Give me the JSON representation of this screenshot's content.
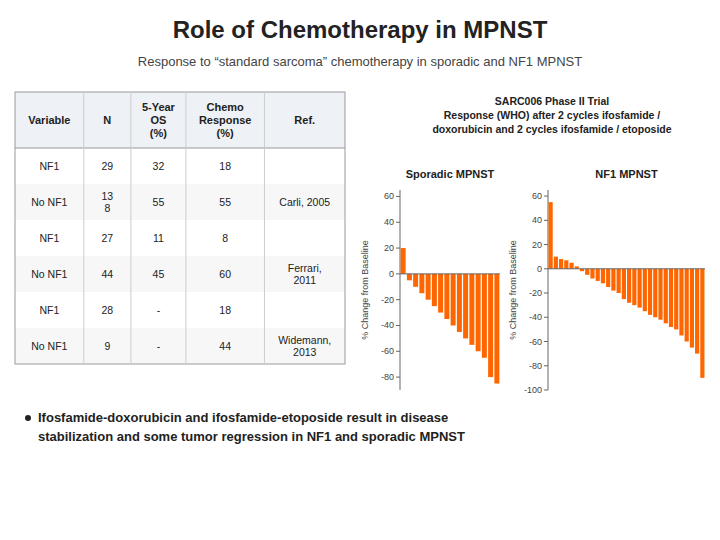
{
  "chart_data": [
    {
      "type": "table",
      "title": "Role of Chemotherapy in MPNST",
      "subtitle": "Response to “standard sarcoma” chemotherapy in sporadic and NF1 MPNST",
      "columns": [
        "Variable",
        "N",
        "5-Year\nOS\n(%)",
        "Chemo\nResponse\n(%)",
        "Ref."
      ],
      "rows": [
        [
          "NF1",
          "29",
          "32",
          "18",
          null
        ],
        [
          "No NF1",
          "13\n8",
          "55",
          "55",
          "Carli, 2005"
        ],
        [
          "NF1",
          "27",
          "11",
          "8",
          null
        ],
        [
          "No NF1",
          "44",
          "45",
          "60",
          "Ferrari,\n2011"
        ],
        [
          "NF1",
          "28",
          "-",
          "18",
          null
        ],
        [
          "No NF1",
          "9",
          "-",
          "44",
          "Widemann,\n2013"
        ]
      ],
      "annotations": [
        "SARC006 Phase II Trial\nResponse (WHO) after 2 cycles ifosfamide /\ndoxorubicin and 2 cycles ifosfamide / etoposide",
        "Ifosfamide-doxorubicin and ifosfamide-etoposide result in disease\nstabilization and some tumor regression in NF1 and sporadic MPNST"
      ]
    },
    {
      "type": "bar",
      "title": "Sporadic MPNST",
      "y_label": "% Change from Baseline",
      "values": [
        20,
        -5,
        -10,
        -15,
        -20,
        -25,
        -30,
        -35,
        -40,
        -45,
        -50,
        -55,
        -60,
        -65,
        -80,
        -85
      ],
      "color": "#FF6600",
      "ylim": [
        -90,
        65
      ],
      "yticks": [
        -80,
        -60,
        -40,
        -20,
        0,
        20,
        40,
        60
      ],
      "tick_labels": "y",
      "grid": false
    },
    {
      "type": "bar",
      "title": "NF1 MPNST",
      "y_label": "% Change from Baseline",
      "values": [
        55,
        10,
        8,
        7,
        5,
        2,
        -2,
        -5,
        -8,
        -10,
        -12,
        -15,
        -18,
        -20,
        -25,
        -28,
        -30,
        -32,
        -35,
        -38,
        -40,
        -42,
        -45,
        -48,
        -50,
        -55,
        -60,
        -65,
        -70,
        -90
      ],
      "color": "#FF6600",
      "ylim": [
        -100,
        65
      ],
      "yticks": [
        -100,
        -80,
        -60,
        -40,
        -20,
        0,
        20,
        40,
        60
      ],
      "tick_labels": "y",
      "grid": false
    }
  ]
}
